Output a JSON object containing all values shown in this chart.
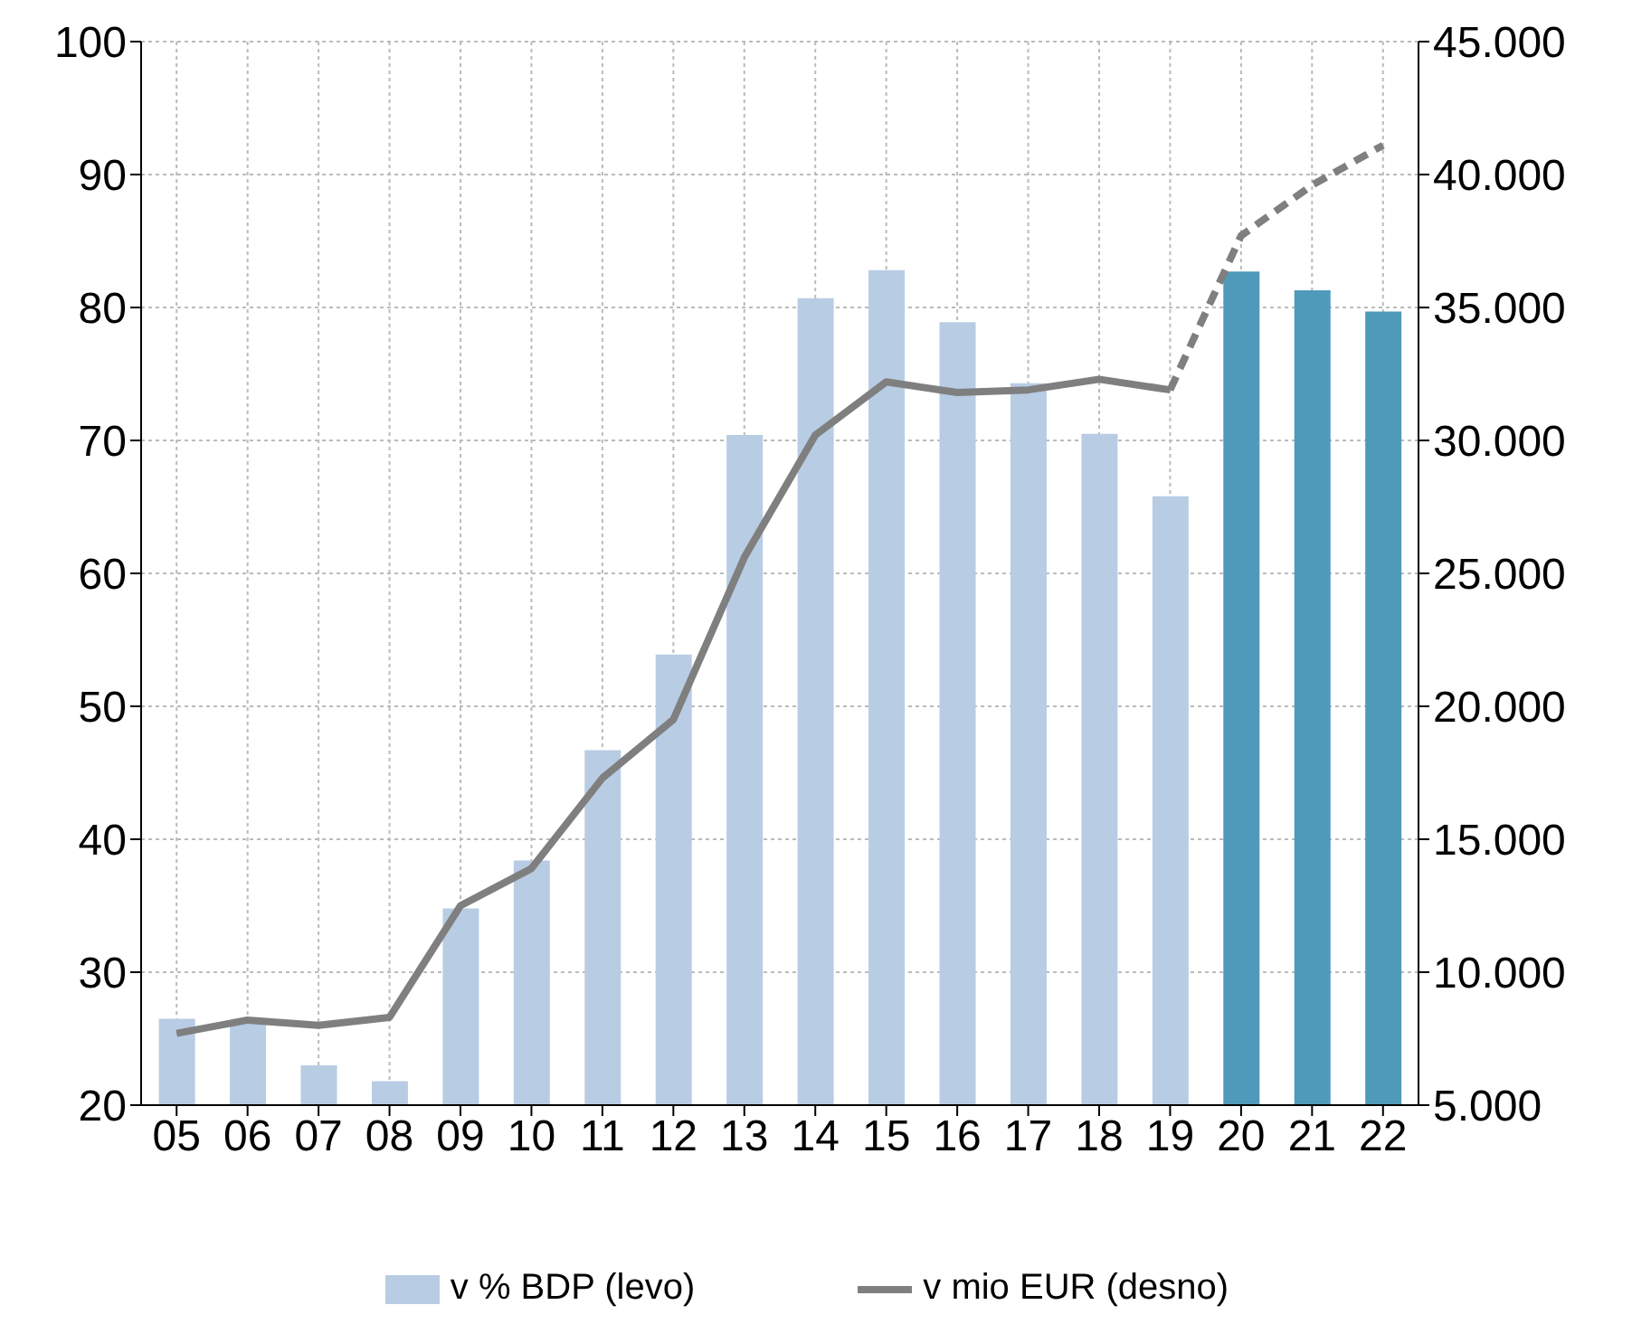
{
  "chart_data": {
    "type": "bar",
    "categories": [
      "05",
      "06",
      "07",
      "08",
      "09",
      "10",
      "11",
      "12",
      "13",
      "14",
      "15",
      "16",
      "17",
      "18",
      "19",
      "20",
      "21",
      "22"
    ],
    "ylim": [
      20,
      100
    ],
    "yticks": [
      20,
      30,
      40,
      50,
      60,
      70,
      80,
      90,
      100
    ],
    "y2lim": [
      5000,
      45000
    ],
    "y2ticks": [
      {
        "value": 5000,
        "label": "5.000"
      },
      {
        "value": 10000,
        "label": "10.000"
      },
      {
        "value": 15000,
        "label": "15.000"
      },
      {
        "value": 20000,
        "label": "20.000"
      },
      {
        "value": 25000,
        "label": "25.000"
      },
      {
        "value": 30000,
        "label": "30.000"
      },
      {
        "value": 35000,
        "label": "35.000"
      },
      {
        "value": 40000,
        "label": "40.000"
      },
      {
        "value": 45000,
        "label": "45.000"
      }
    ],
    "grid": true,
    "legend": "bottom",
    "series": [
      {
        "type": "bar",
        "name": "v % BDP (levo)",
        "color": "#b8cce4",
        "colors": [
          "#b8cce4",
          "#b8cce4",
          "#b8cce4",
          "#b8cce4",
          "#b8cce4",
          "#b8cce4",
          "#b8cce4",
          "#b8cce4",
          "#b8cce4",
          "#b8cce4",
          "#b8cce4",
          "#b8cce4",
          "#b8cce4",
          "#b8cce4",
          "#b8cce4",
          "#4f9aba",
          "#4f9aba",
          "#4f9aba"
        ],
        "values": [
          26.5,
          26.2,
          23,
          21.8,
          34.8,
          38.4,
          46.7,
          53.9,
          70.4,
          80.7,
          82.8,
          78.9,
          74.3,
          70.5,
          65.8,
          82.7,
          81.3,
          79.7
        ]
      },
      {
        "type": "line",
        "name": "v mio EUR (desno)",
        "axis": "y2",
        "color": "#7f7f7f",
        "line_style": "solid",
        "values": [
          7700,
          8200,
          8000,
          8300,
          12500,
          13900,
          17300,
          19500,
          25600,
          30200,
          32200,
          31800,
          31900,
          32300,
          31900,
          null,
          null,
          null
        ]
      },
      {
        "type": "line",
        "axis": "y2",
        "color": "#7f7f7f",
        "line_style": "dashed",
        "values": [
          null,
          null,
          null,
          null,
          null,
          null,
          null,
          null,
          null,
          null,
          null,
          null,
          null,
          null,
          31900,
          37700,
          39600,
          41100
        ]
      }
    ]
  }
}
